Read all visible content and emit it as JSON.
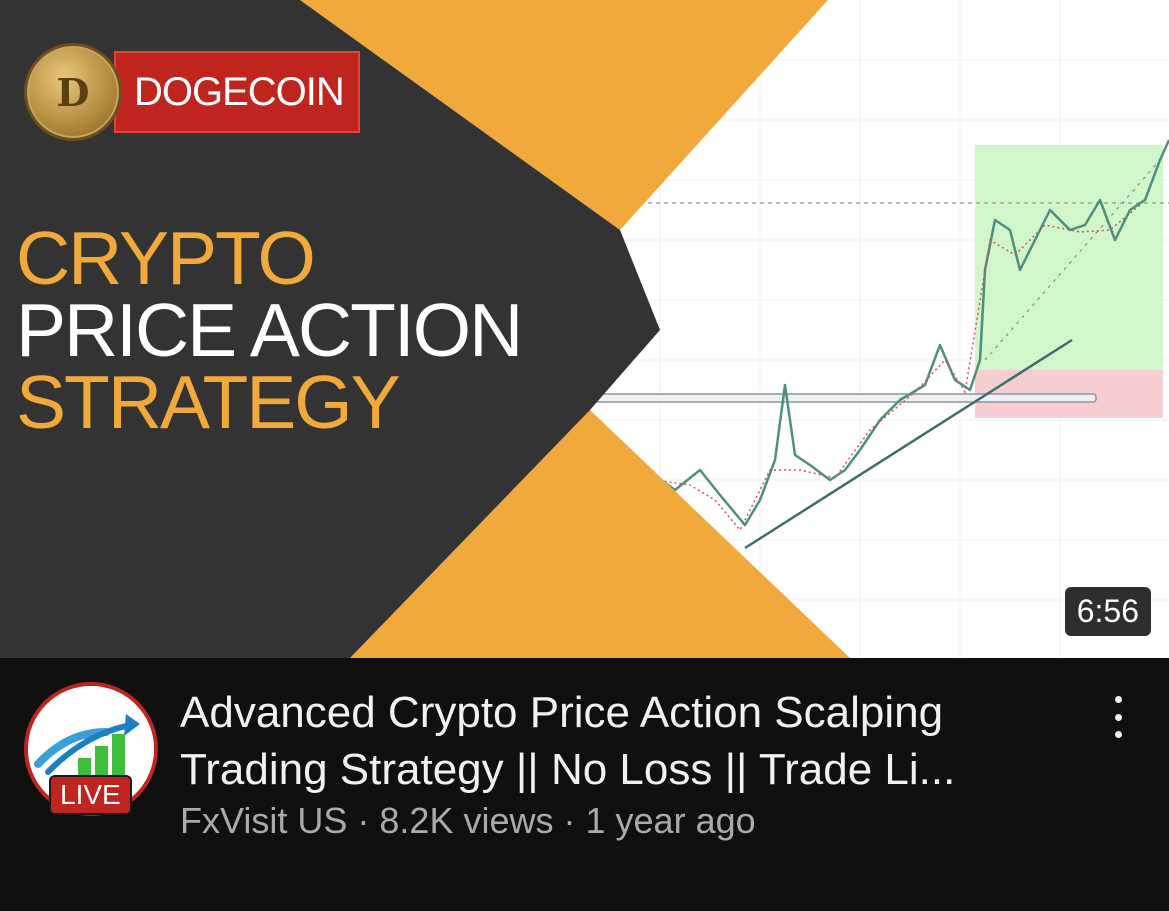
{
  "video": {
    "thumbnail": {
      "brand_label": "DOGECOIN",
      "coin_letter": "D",
      "headline": [
        "CRYPTO",
        "PRICE ACTION",
        "STRATEGY"
      ],
      "duration": "6:56"
    },
    "title": "Advanced Crypto Price Action Scalping Trading Strategy  || No Loss || Trade Li...",
    "channel": "FxVisit US",
    "views": "8.2K views",
    "age": "1 year ago",
    "separator": "·",
    "live_badge": "LIVE"
  },
  "icons": {
    "menu": "more-vert-icon",
    "coin": "dogecoin-icon"
  },
  "colors": {
    "orange": "#f2a93b",
    "dark": "#333333",
    "red": "#c0241f",
    "chart_green": "#c8f5c0",
    "chart_red": "#f5c4c9",
    "background": "#0f0f0f"
  }
}
